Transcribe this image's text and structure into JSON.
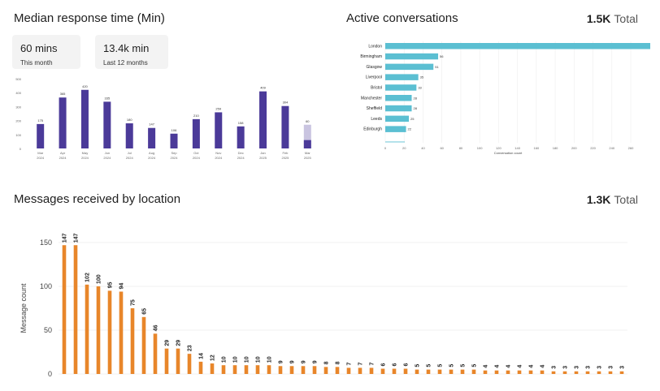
{
  "panel1": {
    "title": "Median response time (Min)",
    "cards": [
      {
        "value": "60 mins",
        "label": "This month"
      },
      {
        "value": "13.4k min",
        "label": "Last 12 months"
      }
    ]
  },
  "panel2": {
    "title": "Active conversations",
    "total_value": "1.5K",
    "total_label": "Total"
  },
  "panel3": {
    "title": "Messages received by location",
    "total_value": "1.3K",
    "total_label": "Total"
  },
  "chart_data": [
    {
      "type": "bar",
      "title": "Median response time (Min)",
      "categories": [
        "Mar\n2024",
        "Apr\n2024",
        "May\n2024",
        "Jun\n2024",
        "Jul\n2024",
        "Aug\n2024",
        "Sep\n2024",
        "Oct\n2024",
        "Nov\n2024",
        "Dec\n2024",
        "Jan\n2025",
        "Feb\n2025",
        "Mar\n2025"
      ],
      "values": [
        175,
        365,
        420,
        335,
        180,
        147,
        106,
        210,
        259,
        158,
        409,
        304,
        60
      ],
      "highlight_last_total": 170,
      "value_labels": [
        "175",
        "365",
        "420",
        "335",
        "180",
        "147",
        "106",
        "210",
        "259",
        "158",
        "409",
        "304",
        "60"
      ],
      "yticks": [
        0,
        100,
        200,
        300,
        400,
        500
      ],
      "ylim": [
        0,
        500
      ],
      "colors": {
        "bar": "#4b3a99",
        "highlight": "#c9c4e0"
      }
    },
    {
      "type": "bar",
      "orientation": "horizontal",
      "title": "Active conversations",
      "xlabel": "Conversation count",
      "categories": [
        "London",
        "Birmingham",
        "Glasgow",
        "Liverpool",
        "Bristol",
        "Manchester",
        "Sheffield",
        "Leeds",
        "Edinburgh"
      ],
      "values": [
        287,
        56,
        51,
        35,
        33,
        28,
        28,
        25,
        22
      ],
      "value_labels": [
        "287",
        "56",
        "51",
        "35",
        "33",
        "28",
        "28",
        "25",
        "22"
      ],
      "xticks": [
        0,
        20,
        40,
        60,
        80,
        100,
        120,
        140,
        160,
        180,
        200,
        220,
        240,
        260
      ],
      "xlim": [
        0,
        260
      ],
      "colors": {
        "bar": "#5bbfd2"
      }
    },
    {
      "type": "bar",
      "title": "Messages received by location",
      "ylabel": "Message count",
      "values": [
        147,
        147,
        102,
        100,
        95,
        94,
        75,
        65,
        46,
        29,
        29,
        23,
        14,
        12,
        10,
        10,
        10,
        10,
        10,
        9,
        9,
        9,
        9,
        8,
        8,
        7,
        7,
        7,
        6,
        6,
        6,
        5,
        5,
        5,
        5,
        5,
        5,
        4,
        4,
        4,
        4,
        4,
        4,
        3,
        3,
        3,
        3,
        3,
        3,
        3
      ],
      "yticks": [
        0,
        50,
        100,
        150
      ],
      "ylim": [
        0,
        150
      ],
      "colors": {
        "bar": "#e8862a"
      }
    }
  ]
}
